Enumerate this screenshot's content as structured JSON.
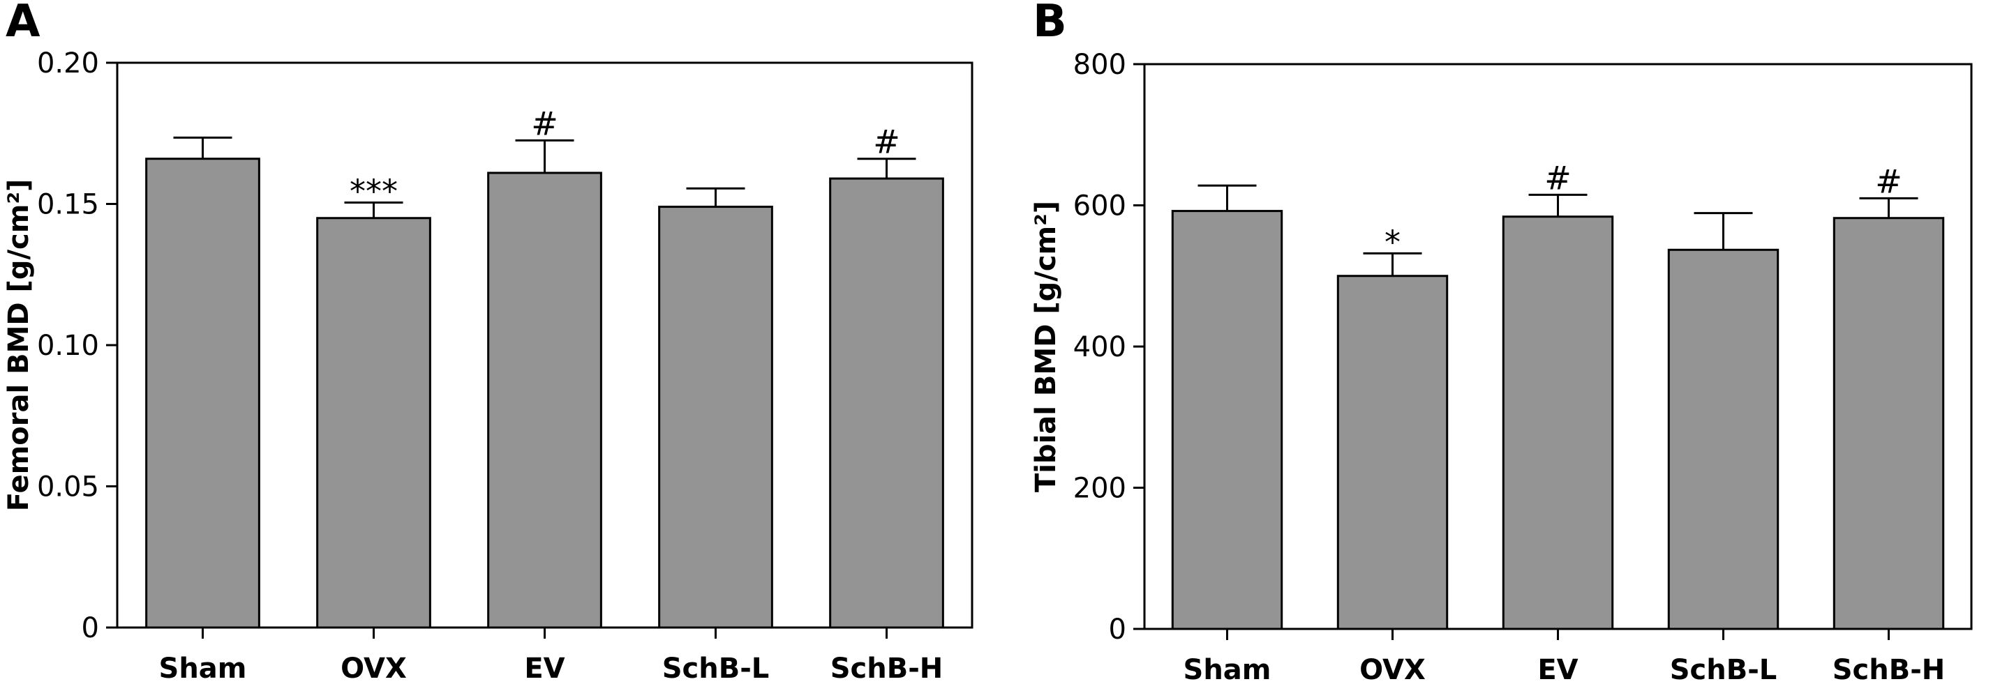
{
  "colors": {
    "bar_fill": "#949494",
    "stroke": "#000000"
  },
  "chart_data": [
    {
      "type": "bar",
      "panel_label": "A",
      "ylabel": "Femoral BMD [g/cm²]",
      "xlabel": "",
      "ylim": [
        0,
        0.2
      ],
      "ytick_values": [
        0,
        0.05,
        0.1,
        0.15,
        0.2
      ],
      "ytick_labels": [
        "0",
        "0.05",
        "0.10",
        "0.15",
        "0.20"
      ],
      "categories": [
        "Sham",
        "OVX",
        "EV",
        "SchB-L",
        "SchB-H"
      ],
      "values": [
        0.166,
        0.145,
        0.161,
        0.149,
        0.159
      ],
      "errors": [
        0.0075,
        0.0055,
        0.0115,
        0.0065,
        0.007
      ],
      "annotations": [
        "",
        "***",
        "#",
        "",
        "#"
      ],
      "grid": false
    },
    {
      "type": "bar",
      "panel_label": "B",
      "ylabel": "Tibial BMD [g/cm²]",
      "xlabel": "",
      "ylim": [
        0,
        800
      ],
      "ytick_values": [
        0,
        200,
        400,
        600,
        800
      ],
      "ytick_labels": [
        "0",
        "200",
        "400",
        "600",
        "800"
      ],
      "categories": [
        "Sham",
        "OVX",
        "EV",
        "SchB-L",
        "SchB-H"
      ],
      "values": [
        592,
        500,
        584,
        537,
        582
      ],
      "errors": [
        36,
        32,
        31,
        52,
        28
      ],
      "annotations": [
        "",
        "*",
        "#",
        "",
        "#"
      ],
      "grid": false
    }
  ]
}
